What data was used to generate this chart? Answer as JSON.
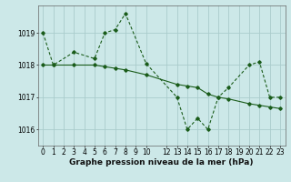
{
  "background_color": "#cce8e8",
  "grid_color": "#aacccc",
  "line_color": "#1a5c1a",
  "series1_x": [
    0,
    1,
    3,
    5,
    6,
    7,
    8,
    10,
    13,
    14,
    15,
    16,
    17,
    18,
    20,
    21,
    22,
    23
  ],
  "series1_y": [
    1019.0,
    1018.0,
    1018.4,
    1018.2,
    1019.0,
    1019.1,
    1019.6,
    1018.05,
    1017.0,
    1016.0,
    1016.35,
    1016.0,
    1017.0,
    1017.3,
    1018.0,
    1018.1,
    1017.0,
    1017.0
  ],
  "series2_x": [
    0,
    1,
    3,
    5,
    6,
    7,
    8,
    10,
    13,
    14,
    15,
    16,
    17,
    18,
    20,
    21,
    22,
    23
  ],
  "series2_y": [
    1018.0,
    1018.0,
    1018.0,
    1018.0,
    1017.95,
    1017.9,
    1017.85,
    1017.7,
    1017.4,
    1017.35,
    1017.3,
    1017.1,
    1017.0,
    1016.95,
    1016.8,
    1016.75,
    1016.7,
    1016.65
  ],
  "ylim": [
    1015.5,
    1019.85
  ],
  "yticks": [
    1016,
    1017,
    1018,
    1019
  ],
  "x_labels": [
    "0",
    "1",
    "2",
    "3",
    "4",
    "5",
    "6",
    "7",
    "8",
    "9",
    "10",
    "12",
    "13",
    "14",
    "15",
    "16",
    "17",
    "18",
    "19",
    "20",
    "21",
    "22",
    "23"
  ],
  "x_vals": [
    0,
    1,
    2,
    3,
    4,
    5,
    6,
    7,
    8,
    9,
    10,
    12,
    13,
    14,
    15,
    16,
    17,
    18,
    19,
    20,
    21,
    22,
    23
  ],
  "xlabel": "Graphe pression niveau de la mer (hPa)",
  "tick_fontsize": 5.5,
  "xlabel_fontsize": 6.5
}
